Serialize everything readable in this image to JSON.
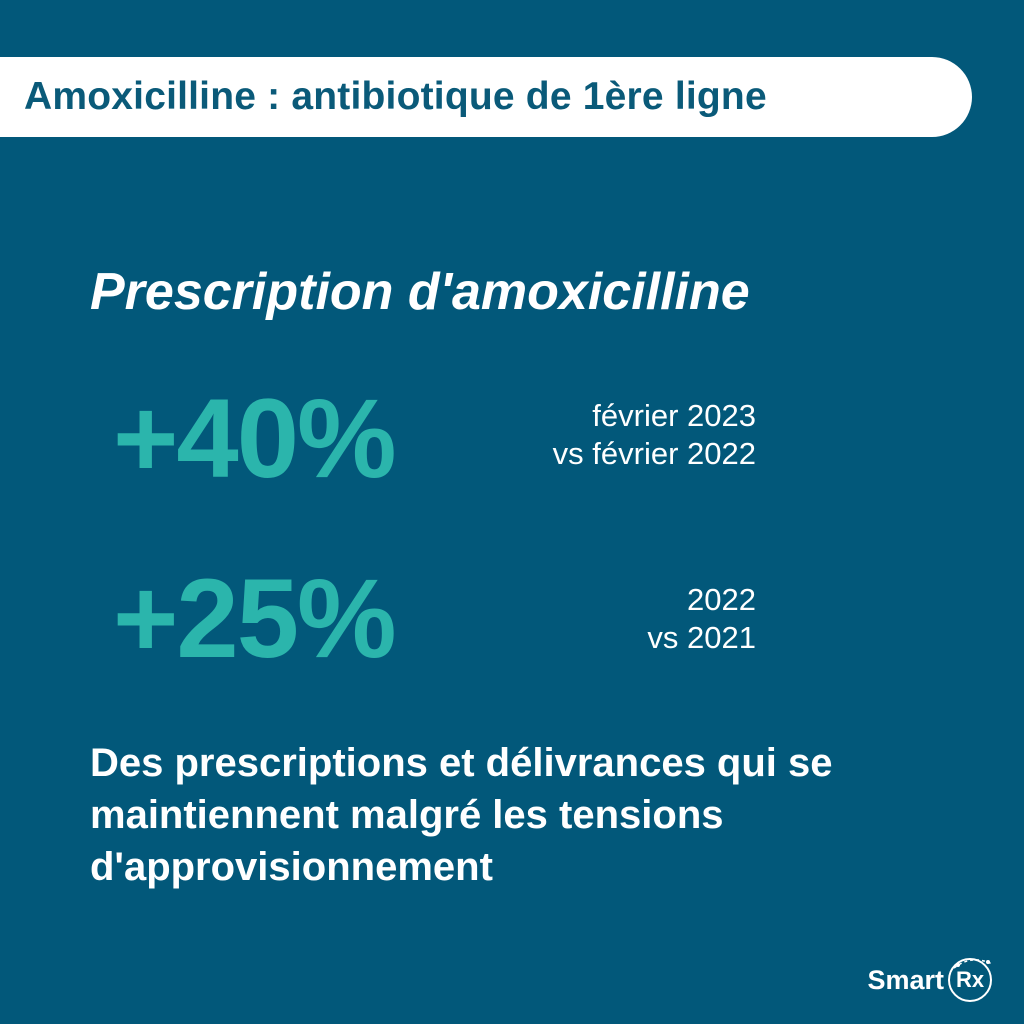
{
  "banner": {
    "title": "Amoxicilline : antibiotique de 1ère ligne"
  },
  "section": {
    "heading": "Prescription d'amoxicilline"
  },
  "stats": [
    {
      "value": "+40%",
      "desc_line1": "février 2023",
      "desc_line2": "vs février 2022"
    },
    {
      "value": "+25%",
      "desc_line1": "2022",
      "desc_line2": "vs 2021"
    }
  ],
  "conclusion": {
    "line1": "Des prescriptions et délivrances qui se",
    "line2": "maintiennent malgré les tensions",
    "line3": "d'approvisionnement"
  },
  "logo": {
    "word": "Smart",
    "badge": "Rx"
  },
  "colors": {
    "background": "#02587a",
    "accent": "#2bb5ac",
    "banner": "#ffffff",
    "banner_text": "#0a5a79"
  }
}
